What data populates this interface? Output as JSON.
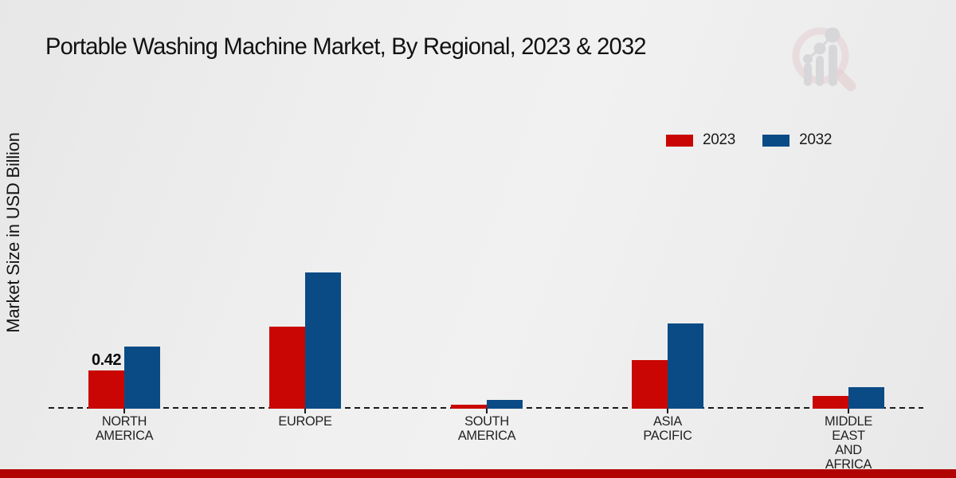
{
  "title": "Portable Washing Machine Market, By Regional, 2023 & 2032",
  "ylabel": "Market Size in USD Billion",
  "legend": [
    {
      "label": "2023",
      "color": "#c90603"
    },
    {
      "label": "2032",
      "color": "#0a4b85"
    }
  ],
  "colors": {
    "series_2023": "#c90603",
    "series_2032": "#0a4b85",
    "footer_bar": "#b00302",
    "baseline": "#1a1a1a"
  },
  "watermark_icon": "market-research-future-magnifier-bar-chart-logo",
  "chart_data": {
    "type": "bar",
    "title": "Portable Washing Machine Market, By Regional, 2023 & 2032",
    "xlabel": "",
    "ylabel": "Market Size in USD Billion",
    "categories": [
      "NORTH AMERICA",
      "EUROPE",
      "SOUTH AMERICA",
      "ASIA PACIFIC",
      "MIDDLE EAST AND AFRICA"
    ],
    "series": [
      {
        "name": "2023",
        "color": "#c90603",
        "values": [
          0.42,
          0.9,
          0.04,
          0.53,
          0.14
        ]
      },
      {
        "name": "2032",
        "color": "#0a4b85",
        "values": [
          0.68,
          1.5,
          0.1,
          0.94,
          0.24
        ]
      }
    ],
    "annotations": [
      {
        "series_index": 0,
        "category_index": 0,
        "text": "0.42"
      }
    ],
    "ylim": [
      0,
      1.6
    ],
    "grid": false,
    "legend_position": "upper-right",
    "baseline_style": "dashed"
  }
}
